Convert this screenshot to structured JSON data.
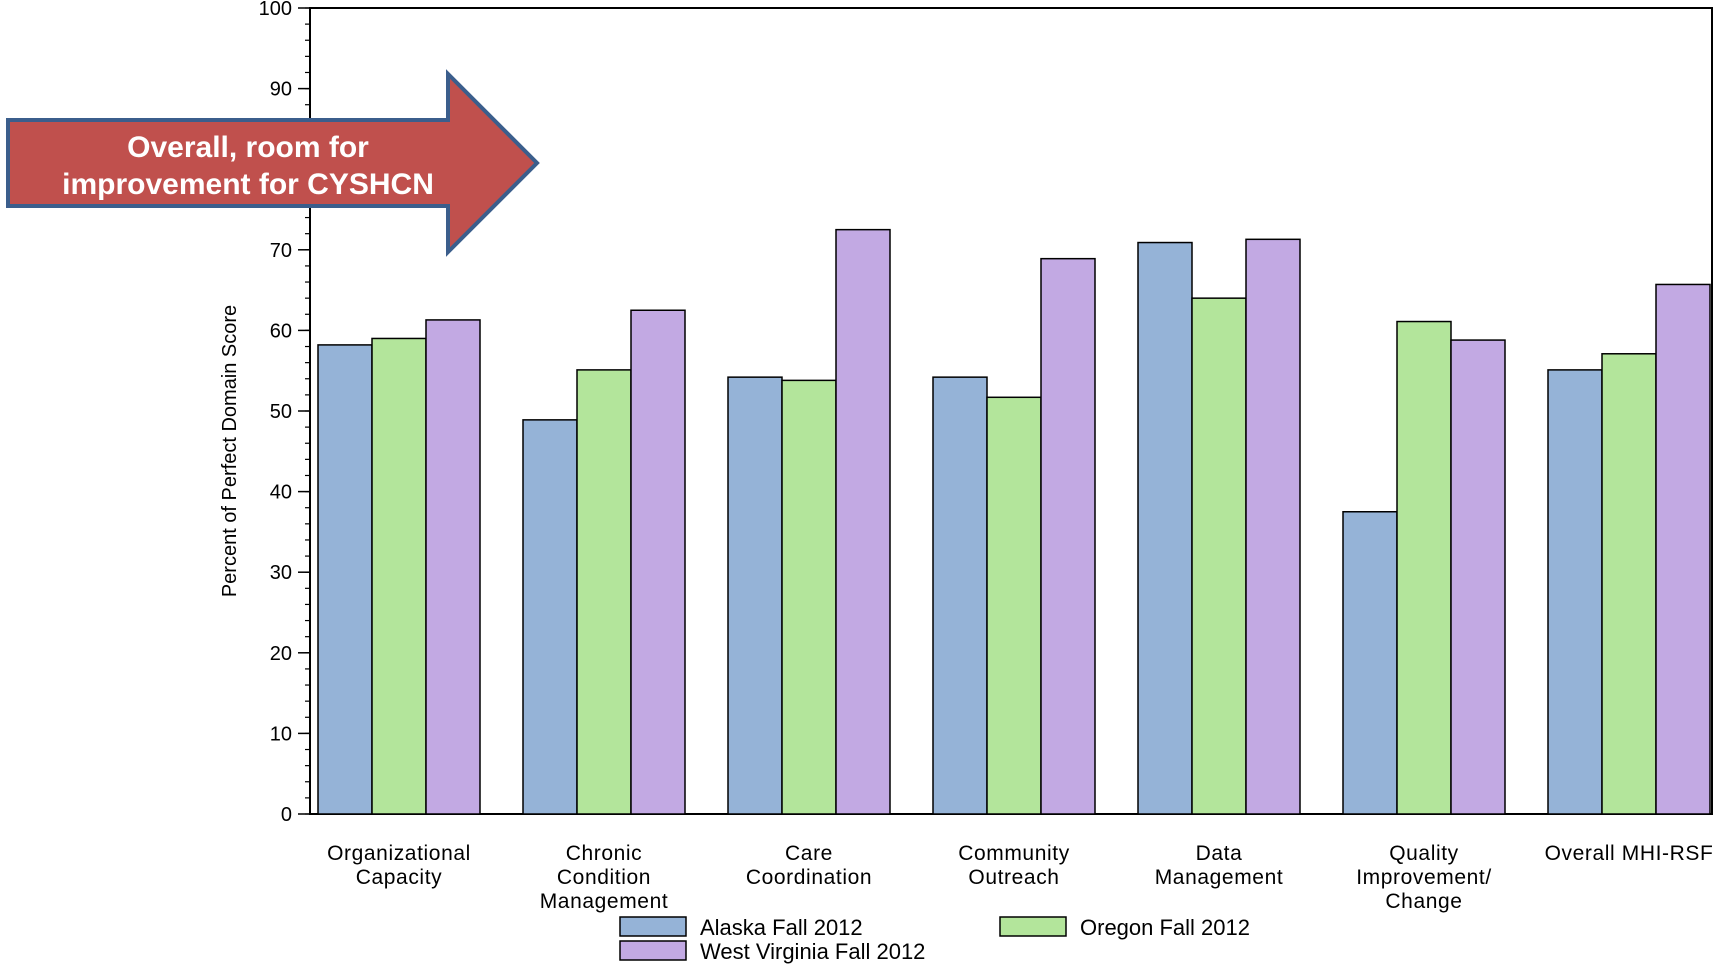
{
  "chart_data": {
    "type": "bar",
    "title": "",
    "xlabel": "",
    "ylabel": "Percent of Perfect Domain Score",
    "ylim": [
      0,
      100
    ],
    "yticks": [
      0,
      10,
      20,
      30,
      40,
      50,
      60,
      70,
      80,
      90,
      100
    ],
    "grid": false,
    "legend_position": "bottom",
    "categories": [
      [
        "Organizational",
        "Capacity"
      ],
      [
        "Chronic",
        "Condition",
        "Management"
      ],
      [
        "Care",
        "Coordination"
      ],
      [
        "Community",
        "Outreach"
      ],
      [
        "Data",
        "Management"
      ],
      [
        "Quality",
        "Improvement/",
        "Change"
      ],
      [
        "Overall MHI-RSF"
      ]
    ],
    "series": [
      {
        "name": "Alaska Fall 2012",
        "color": "#95b3d7",
        "values": [
          58.2,
          48.9,
          54.2,
          54.2,
          70.9,
          37.5,
          55.1
        ]
      },
      {
        "name": "Oregon Fall 2012",
        "color": "#b3e59b",
        "values": [
          59.0,
          55.1,
          53.8,
          51.7,
          64.0,
          61.1,
          57.1
        ]
      },
      {
        "name": "West Virginia Fall 2012",
        "color": "#c2a9e3",
        "values": [
          61.3,
          62.5,
          72.5,
          68.9,
          71.3,
          58.8,
          65.7
        ]
      }
    ],
    "annotation": {
      "lines": [
        "Overall, room for",
        "improvement for CYSHCN"
      ],
      "fill": "#c0504d",
      "stroke": "#3b5e8c"
    }
  }
}
